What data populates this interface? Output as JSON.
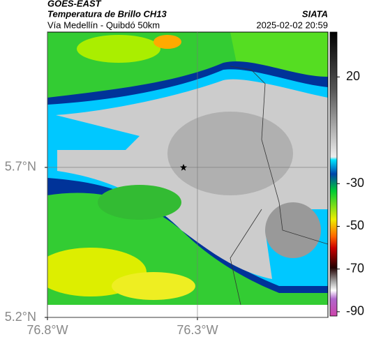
{
  "header": {
    "source": "GOES-EAST",
    "product": "Temperatura de Brillo CH13",
    "brand": "SIATA",
    "region": "Vía Medellín - Quibdó 50km",
    "datetime": "2025-02-02 20:59"
  },
  "map": {
    "xlim": [
      -76.8,
      -75.865
    ],
    "ylim": [
      5.2,
      6.151
    ],
    "xticks": [
      {
        "value": -76.8,
        "label": "76.8°W"
      },
      {
        "value": -76.3,
        "label": "76.3°W"
      }
    ],
    "yticks": [
      {
        "value": 5.7,
        "label": "5.7°N"
      },
      {
        "value": 5.2,
        "label": "5.2°N"
      }
    ],
    "grid": true
  },
  "colorbar": {
    "clim": [
      -92,
      41
    ],
    "ticks": [
      20,
      -30,
      -50,
      -70,
      -90
    ]
  }
}
